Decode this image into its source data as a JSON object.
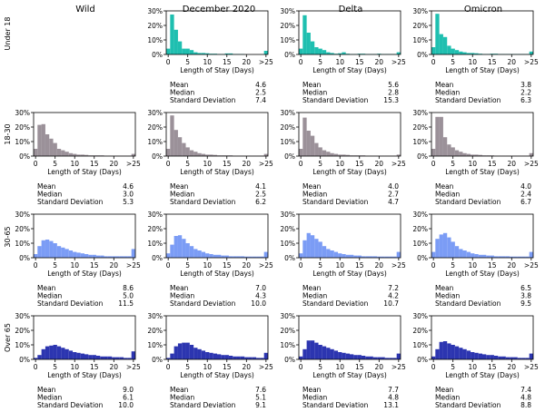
{
  "figure": {
    "column_titles": [
      "Wild",
      "December 2020",
      "Delta",
      "Omicron"
    ],
    "row_labels": [
      "Under 18",
      "18-30",
      "30-65",
      "Over 65"
    ],
    "row_colors": [
      "#1fbfb0",
      "#9b9199",
      "#7b9cf5",
      "#2c35b0"
    ],
    "x_label": "Length of Stay (Days)",
    "x_ticks": [
      "0",
      "5",
      "10",
      "15",
      "20",
      ">25"
    ],
    "x_tick_values": [
      0,
      5,
      10,
      15,
      20,
      25
    ],
    "y_ticks": [
      "0%",
      "10%",
      "20%",
      "30%"
    ],
    "y_tick_values": [
      0,
      10,
      20,
      30
    ],
    "stat_labels": [
      "Mean",
      "Median",
      "Standard Deviation"
    ]
  },
  "chart_data": {
    "type": "bar",
    "x_range": [
      0,
      25
    ],
    "y_range": [
      0,
      30
    ],
    "y_unit": "%",
    "bin_centers": [
      0,
      1,
      2,
      3,
      4,
      5,
      6,
      7,
      8,
      9,
      10,
      11,
      12,
      13,
      14,
      15,
      16,
      17,
      18,
      19,
      20,
      21,
      22,
      23,
      24,
      25
    ],
    "panels": [
      {
        "row": "Under 18",
        "col": "December 2020",
        "values": [
          4,
          27.5,
          17,
          9,
          4,
          4,
          3,
          1.5,
          1,
          1,
          0.8,
          0.5,
          0.5,
          0.3,
          0.3,
          0.7,
          0.7,
          0.3,
          0.3,
          0.3,
          0,
          0,
          0,
          0,
          0,
          2.5
        ],
        "stats": [
          "4.6",
          "2.5",
          "7.4"
        ]
      },
      {
        "row": "Under 18",
        "col": "Delta",
        "values": [
          4,
          27,
          15,
          9,
          5,
          4,
          3,
          1.5,
          1,
          0.5,
          0.8,
          1.5,
          0.5,
          0.3,
          0.3,
          0.5,
          0.5,
          0.3,
          0.3,
          0.3,
          0.5,
          0.3,
          0.3,
          0.3,
          0.3,
          1.5
        ],
        "stats": [
          "5.6",
          "2.8",
          "15.3"
        ]
      },
      {
        "row": "Under 18",
        "col": "Omicron",
        "values": [
          5,
          28,
          14,
          12,
          6,
          4,
          3,
          2,
          1.5,
          1,
          1,
          0.8,
          0.5,
          0.3,
          0.3,
          0.5,
          0.5,
          0.3,
          0.3,
          0.3,
          0.3,
          0.3,
          0.3,
          0.3,
          0.3,
          2
        ],
        "stats": [
          "3.8",
          "2.2",
          "6.3"
        ]
      },
      {
        "row": "18-30",
        "col": "Wild",
        "values": [
          5,
          21.5,
          22,
          15,
          12,
          9,
          5,
          4,
          3,
          2,
          1.5,
          1,
          1,
          0.8,
          0.5,
          0.5,
          0.5,
          0.5,
          0.3,
          0.3,
          0.3,
          0.3,
          0.3,
          0.3,
          0.3,
          1.5
        ],
        "stats": [
          "4.6",
          "3.0",
          "5.3"
        ]
      },
      {
        "row": "18-30",
        "col": "December 2020",
        "values": [
          5,
          28,
          18,
          13,
          9,
          6,
          4,
          3,
          2,
          1.5,
          1,
          1,
          0.8,
          0.5,
          0.5,
          0.5,
          0.5,
          0.3,
          0.3,
          0.3,
          0.3,
          0.3,
          0.3,
          0.3,
          0.3,
          1.5
        ],
        "stats": [
          "4.1",
          "2.5",
          "6.2"
        ]
      },
      {
        "row": "18-30",
        "col": "Delta",
        "values": [
          5,
          26.5,
          17.5,
          14,
          9,
          6,
          4,
          3,
          2,
          1.5,
          1,
          1,
          0.8,
          0.5,
          0.5,
          0.5,
          0.5,
          0.3,
          0.3,
          0.3,
          0.3,
          0.3,
          0.3,
          0.3,
          0.3,
          1
        ],
        "stats": [
          "4.0",
          "2.7",
          "4.7"
        ]
      },
      {
        "row": "18-30",
        "col": "Omicron",
        "values": [
          5,
          27,
          27,
          13,
          8,
          6,
          4,
          3,
          2,
          1.5,
          1,
          1,
          0.8,
          0.5,
          0.5,
          0.5,
          0.3,
          0.3,
          0.3,
          0.3,
          0.3,
          0.3,
          0.3,
          0.3,
          0.3,
          2
        ],
        "stats": [
          "4.0",
          "2.4",
          "6.7"
        ]
      },
      {
        "row": "30-65",
        "col": "Wild",
        "values": [
          2.5,
          8,
          12,
          12.5,
          11.5,
          10,
          8,
          7,
          6,
          5,
          4,
          3.5,
          3,
          2.5,
          2,
          2,
          1.5,
          1.5,
          1,
          1,
          1,
          1,
          1,
          1,
          1,
          6
        ],
        "stats": [
          "8.6",
          "5.0",
          "11.5"
        ]
      },
      {
        "row": "30-65",
        "col": "December 2020",
        "values": [
          3,
          9,
          15,
          15.5,
          13,
          10,
          8,
          6,
          5,
          4,
          3,
          2.5,
          2,
          2,
          1.5,
          1.5,
          1,
          1,
          1,
          1,
          0.8,
          0.8,
          0.8,
          0.8,
          0.8,
          4
        ],
        "stats": [
          "7.0",
          "4.3",
          "10.0"
        ]
      },
      {
        "row": "30-65",
        "col": "Delta",
        "values": [
          3,
          12,
          17,
          15.5,
          13,
          11,
          8,
          6,
          5,
          4,
          3,
          2.5,
          2,
          2,
          1.5,
          1.5,
          1,
          1,
          1,
          1,
          0.8,
          0.8,
          0.8,
          0.8,
          0.8,
          4
        ],
        "stats": [
          "7.2",
          "4.2",
          "10.7"
        ]
      },
      {
        "row": "30-65",
        "col": "Omicron",
        "values": [
          4,
          13,
          16,
          17,
          14,
          11,
          8,
          6,
          5,
          4,
          3,
          2.5,
          2,
          2,
          1.5,
          1.5,
          1,
          1,
          1,
          1,
          0.8,
          0.8,
          0.8,
          0.8,
          0.8,
          4
        ],
        "stats": [
          "6.5",
          "3.8",
          "9.5"
        ]
      },
      {
        "row": "Over 65",
        "col": "Wild",
        "values": [
          1,
          3,
          7,
          9,
          9.5,
          10,
          9,
          8,
          7,
          6,
          5,
          4.5,
          4,
          3.5,
          3,
          3,
          2.5,
          2,
          2,
          2,
          1.5,
          1.5,
          1.5,
          1,
          1,
          5.5
        ],
        "stats": [
          "9.0",
          "6.1",
          "10.0"
        ]
      },
      {
        "row": "Over 65",
        "col": "December 2020",
        "values": [
          1,
          4,
          9,
          11,
          11.5,
          11.5,
          10,
          8,
          7,
          6,
          5,
          4.5,
          4,
          3.5,
          3,
          3,
          2.5,
          2,
          2,
          2,
          1.5,
          1.5,
          1.5,
          1,
          1,
          4.5
        ],
        "stats": [
          "7.6",
          "5.1",
          "9.1"
        ]
      },
      {
        "row": "Over 65",
        "col": "Delta",
        "values": [
          2,
          7,
          13,
          13,
          11.5,
          10,
          9,
          8,
          7,
          6,
          5,
          4.5,
          4,
          3.5,
          3,
          3,
          2.5,
          2,
          2,
          1.5,
          1.5,
          1.5,
          1,
          1,
          1,
          4
        ],
        "stats": [
          "7.7",
          "4.8",
          "13.1"
        ]
      },
      {
        "row": "Over 65",
        "col": "Omicron",
        "values": [
          2,
          7,
          12,
          12.5,
          11,
          10,
          9,
          8,
          7,
          6,
          5,
          4.5,
          4,
          3.5,
          3,
          3,
          2.5,
          2,
          2,
          1.5,
          1.5,
          1.5,
          1,
          1,
          1,
          4
        ],
        "stats": [
          "7.4",
          "4.8",
          "8.8"
        ]
      }
    ]
  }
}
